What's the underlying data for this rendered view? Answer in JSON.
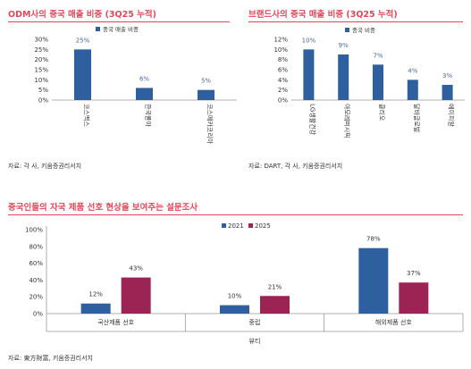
{
  "sections": {
    "odm": {
      "title": "ODM사의 중국 매출 비중 (3Q25 누적)",
      "source": "자료: 각 사, 키움증권리서치"
    },
    "brand": {
      "title": "브랜드사의 중국 매출 비중 (3Q25 누적)",
      "source": "자료: DART, 각 사, 키움증권리서치"
    },
    "survey": {
      "title": "중국인들의 자국 제품 선호 현상을 보여주는 설문조사",
      "source": "자료: 東方財富, 키움증권리서치"
    }
  },
  "chart_data": [
    {
      "type": "bar",
      "title": "ODM사의 중국 매출 비중 (3Q25 누적)",
      "legend": [
        "중국 매출 비중"
      ],
      "legend_position": "top-right",
      "categories": [
        "코스맥스",
        "한국콜마",
        "코스메카코리아"
      ],
      "values": [
        25,
        6,
        5
      ],
      "data_labels": [
        "25%",
        "6%",
        "5%"
      ],
      "yticks": [
        "0%",
        "5%",
        "10%",
        "15%",
        "20%",
        "25%",
        "30%"
      ],
      "ylim": [
        0,
        30
      ],
      "color": "#2e5f9e"
    },
    {
      "type": "bar",
      "title": "브랜드사의 중국 매출 비중 (3Q25 누적)",
      "legend": [
        "중국 비중"
      ],
      "legend_position": "top-right",
      "categories": [
        "LG생활건강",
        "아모레퍼시픽",
        "클리오",
        "달바글로벌",
        "에이피알"
      ],
      "values": [
        10,
        9,
        7,
        4,
        3
      ],
      "data_labels": [
        "10%",
        "9%",
        "7%",
        "4%",
        "3%"
      ],
      "yticks": [
        "0%",
        "2%",
        "4%",
        "6%",
        "8%",
        "10%",
        "12%"
      ],
      "ylim": [
        0,
        12
      ],
      "color": "#2e5f9e"
    },
    {
      "type": "bar",
      "title": "중국인들의 자국 제품 선호 현상을 보여주는 설문조사",
      "legend_position": "top",
      "categories": [
        "국산제품 선호",
        "중립",
        "해외제품 선호"
      ],
      "series": [
        {
          "name": "2021",
          "values": [
            12,
            10,
            78
          ],
          "labels": [
            "12%",
            "10%",
            "78%"
          ],
          "color": "#2e5f9e"
        },
        {
          "name": "2025",
          "values": [
            43,
            21,
            37
          ],
          "labels": [
            "43%",
            "21%",
            "37%"
          ],
          "color": "#9b2454"
        }
      ],
      "xlabel": "뷰티",
      "yticks": [
        "0%",
        "20%",
        "40%",
        "60%",
        "80%",
        "100%"
      ],
      "ylim": [
        0,
        100
      ]
    }
  ]
}
